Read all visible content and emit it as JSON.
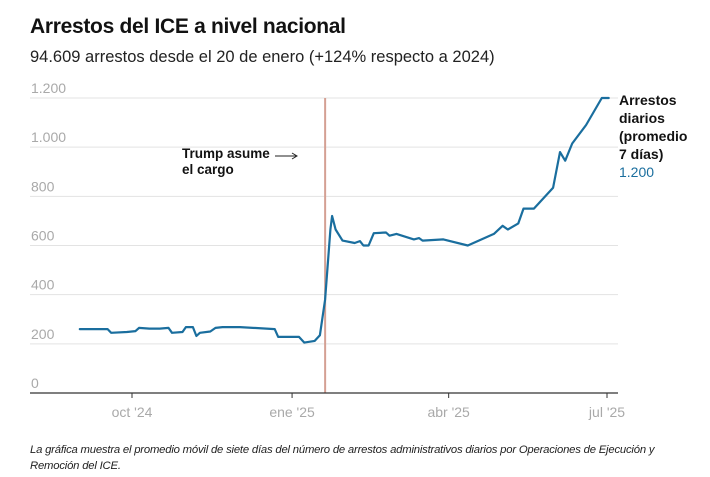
{
  "header": {
    "title": "Arrestos del ICE a nivel nacional",
    "subtitle": "94.609 arrestos desde el 20 de enero (+124% respecto a 2024)"
  },
  "note": "La gráfica muestra el promedio móvil de siete días del número de arrestos administrativos diarios por Operaciones de Ejecución y Remoción del ICE.",
  "colors": {
    "line": "#1a6e9e",
    "event_rule": "#d4a093",
    "grid": "#e3e3e3",
    "axis": "#333333",
    "end_value": "#1a6e9e"
  },
  "chart_data": {
    "type": "line",
    "title": "Arrestos del ICE a nivel nacional",
    "subtitle": "94.609 arrestos desde el 20 de enero (+124% respecto a 2024)",
    "xlabel": "",
    "ylabel": "",
    "ylim": [
      0,
      1200
    ],
    "xlim": [
      "2024-08-21",
      "2025-07-07"
    ],
    "grid": true,
    "y_ticks": [
      {
        "value": 0,
        "label": "0"
      },
      {
        "value": 200,
        "label": "200"
      },
      {
        "value": 400,
        "label": "400"
      },
      {
        "value": 600,
        "label": "600"
      },
      {
        "value": 800,
        "label": "800"
      },
      {
        "value": 1000,
        "label": "1.000"
      },
      {
        "value": 1200,
        "label": "1.200"
      }
    ],
    "x_ticks": [
      {
        "date": "2024-10-01",
        "label": "oct '24"
      },
      {
        "date": "2025-01-01",
        "label": "ene '25"
      },
      {
        "date": "2025-04-01",
        "label": "abr '25"
      },
      {
        "date": "2025-07-01",
        "label": "jul '25"
      }
    ],
    "event": {
      "date": "2025-01-20",
      "label_lines": [
        "Trump asume",
        "el cargo"
      ],
      "arrow": "→"
    },
    "series": [
      {
        "name": "Arrestos diarios (promedio 7 días)",
        "label_lines": [
          "Arrestos",
          "diarios",
          "(promedio",
          "7 días)"
        ],
        "end_value_label": "1.200",
        "points": [
          [
            "2024-09-01",
            260
          ],
          [
            "2024-09-17",
            260
          ],
          [
            "2024-09-19",
            245
          ],
          [
            "2024-09-28",
            248
          ],
          [
            "2024-10-03",
            252
          ],
          [
            "2024-10-05",
            265
          ],
          [
            "2024-10-11",
            262
          ],
          [
            "2024-10-17",
            262
          ],
          [
            "2024-10-22",
            265
          ],
          [
            "2024-10-24",
            245
          ],
          [
            "2024-10-30",
            248
          ],
          [
            "2024-11-01",
            268
          ],
          [
            "2024-11-05",
            268
          ],
          [
            "2024-11-07",
            232
          ],
          [
            "2024-11-09",
            245
          ],
          [
            "2024-11-15",
            250
          ],
          [
            "2024-11-18",
            265
          ],
          [
            "2024-11-22",
            268
          ],
          [
            "2024-12-02",
            268
          ],
          [
            "2024-12-22",
            260
          ],
          [
            "2024-12-24",
            228
          ],
          [
            "2025-01-05",
            228
          ],
          [
            "2025-01-08",
            205
          ],
          [
            "2025-01-14",
            212
          ],
          [
            "2025-01-17",
            235
          ],
          [
            "2025-01-20",
            380
          ],
          [
            "2025-01-23",
            665
          ],
          [
            "2025-01-24",
            720
          ],
          [
            "2025-01-26",
            665
          ],
          [
            "2025-01-30",
            620
          ],
          [
            "2025-02-06",
            610
          ],
          [
            "2025-02-09",
            618
          ],
          [
            "2025-02-11",
            600
          ],
          [
            "2025-02-14",
            600
          ],
          [
            "2025-02-17",
            650
          ],
          [
            "2025-02-24",
            653
          ],
          [
            "2025-02-26",
            640
          ],
          [
            "2025-03-02",
            647
          ],
          [
            "2025-03-12",
            625
          ],
          [
            "2025-03-15",
            630
          ],
          [
            "2025-03-17",
            620
          ],
          [
            "2025-03-29",
            625
          ],
          [
            "2025-04-12",
            600
          ],
          [
            "2025-04-27",
            647
          ],
          [
            "2025-05-02",
            680
          ],
          [
            "2025-05-05",
            665
          ],
          [
            "2025-05-11",
            690
          ],
          [
            "2025-05-14",
            750
          ],
          [
            "2025-05-20",
            750
          ],
          [
            "2025-05-31",
            835
          ],
          [
            "2025-06-04",
            980
          ],
          [
            "2025-06-07",
            945
          ],
          [
            "2025-06-11",
            1015
          ],
          [
            "2025-06-19",
            1090
          ],
          [
            "2025-06-28",
            1200
          ],
          [
            "2025-07-02",
            1200
          ]
        ]
      }
    ]
  }
}
